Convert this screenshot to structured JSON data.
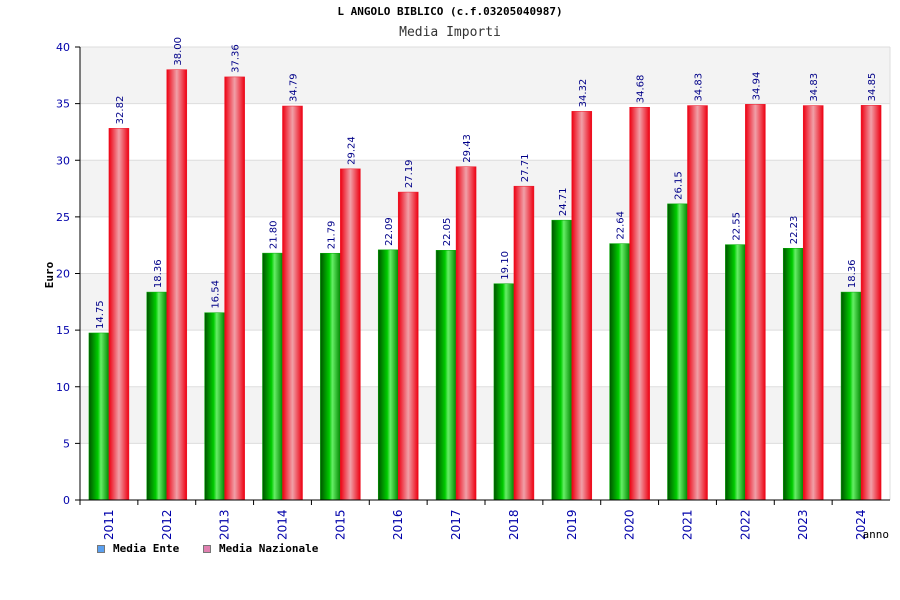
{
  "title": "L ANGOLO BIBLICO (c.f.03205040987)",
  "subtitle": "Media Importi",
  "legend": [
    {
      "label": "Media Ente",
      "color": "#5aa0f0"
    },
    {
      "label": "Media Nazionale",
      "color": "#e080b0"
    }
  ],
  "colors": {
    "ente_bar": "#00aa00",
    "nazionale_bar": "#ee1122"
  },
  "chart_data": {
    "type": "bar",
    "categories": [
      "2011",
      "2012",
      "2013",
      "2014",
      "2015",
      "2016",
      "2017",
      "2018",
      "2019",
      "2020",
      "2021",
      "2022",
      "2023",
      "2024"
    ],
    "series": [
      {
        "name": "Media Ente",
        "values": [
          14.75,
          18.36,
          16.54,
          21.8,
          21.79,
          22.09,
          22.05,
          19.1,
          24.71,
          22.64,
          26.15,
          22.55,
          22.23,
          18.36
        ]
      },
      {
        "name": "Media Nazionale",
        "values": [
          32.82,
          38.0,
          37.36,
          34.79,
          29.24,
          27.19,
          29.43,
          27.71,
          34.32,
          34.68,
          34.83,
          34.94,
          34.83,
          34.85
        ]
      }
    ],
    "value_labels": [
      [
        "14.75",
        "18.36",
        "16.54",
        "21.80",
        "21.79",
        "22.09",
        "22.05",
        "19.10",
        "24.71",
        "22.64",
        "26.15",
        "22.55",
        "22.23",
        "18.36"
      ],
      [
        "32.82",
        "38.00",
        "37.36",
        "34.79",
        "29.24",
        "27.19",
        "29.43",
        "27.71",
        "34.32",
        "34.68",
        "34.83",
        "34.94",
        "34.83",
        "34.85"
      ]
    ],
    "ylabel": "Euro",
    "xlabel": "anno",
    "ylim": [
      0,
      40
    ],
    "yticks": [
      "0",
      "5",
      "10",
      "15",
      "20",
      "25",
      "30",
      "35",
      "40"
    ],
    "grid": true,
    "legend_position": "bottom-left"
  }
}
